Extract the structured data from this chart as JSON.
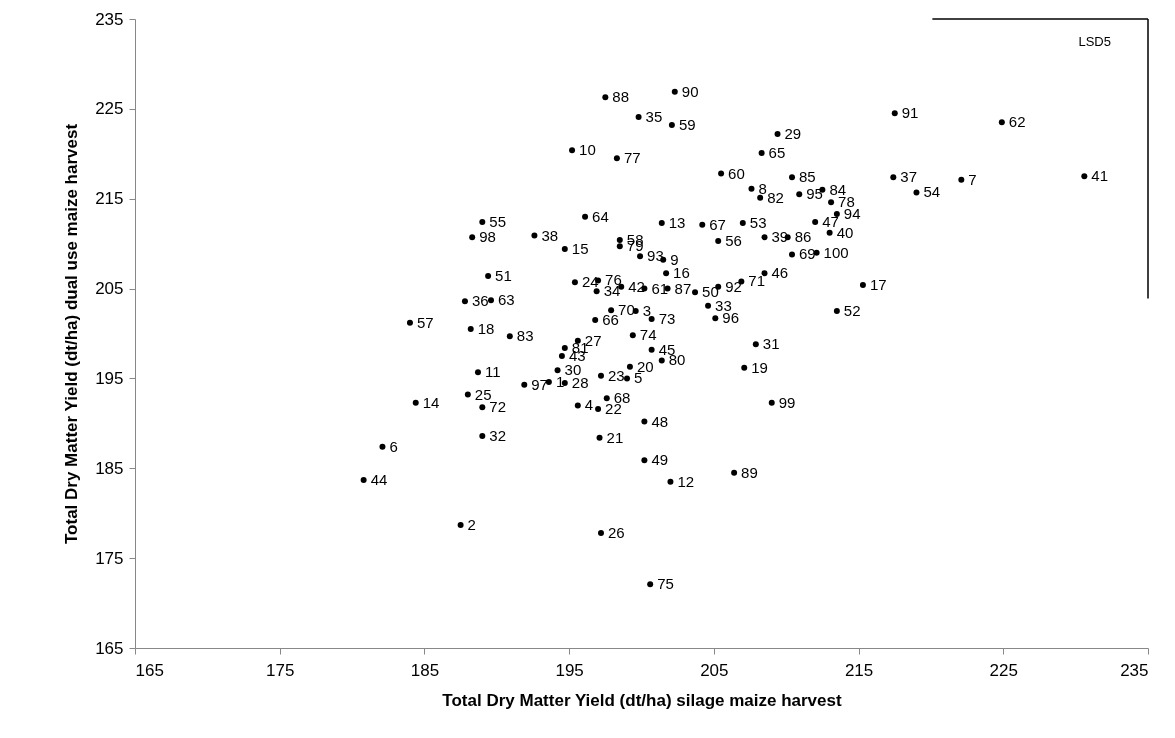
{
  "chart_data": {
    "type": "scatter",
    "xlabel": "Total Dry Matter Yield (dt/ha) silage maize  harvest",
    "ylabel": "Total Dry Matter Yield (dt/ha) dual use maize  harvest",
    "xlim": [
      165,
      235
    ],
    "ylim": [
      165,
      235
    ],
    "xticks": [
      165,
      175,
      185,
      195,
      205,
      215,
      225,
      235
    ],
    "yticks": [
      165,
      175,
      185,
      195,
      205,
      215,
      225,
      235
    ],
    "grid": false,
    "series": [
      {
        "marker": "circle",
        "color": "#000000",
        "x": [
          197.5,
          202.3,
          199.8,
          202.1,
          195.2,
          198.3,
          217.5,
          224.9,
          209.4,
          208.3,
          205.5,
          210.4,
          207.6,
          208.2,
          210.9,
          212.5,
          213.1,
          213.5,
          217.4,
          219.0,
          222.1,
          230.6,
          196.1,
          201.4,
          189.0,
          188.3,
          192.6,
          194.7,
          198.5,
          198.5,
          199.9,
          201.5,
          201.7,
          204.2,
          205.3,
          207.0,
          208.5,
          210.1,
          212.0,
          213.0,
          212.1,
          210.4,
          215.3,
          213.5,
          203.7,
          205.3,
          206.9,
          208.5,
          204.6,
          205.1,
          207.9,
          207.1,
          209.0,
          206.4,
          202.0,
          200.2,
          200.2,
          197.1,
          197.2,
          200.6,
          187.5,
          180.8,
          182.1,
          189.0,
          184.4,
          188.0,
          189.0,
          188.7,
          191.9,
          194.2,
          193.6,
          194.7,
          194.5,
          194.7,
          195.6,
          197.2,
          199.0,
          199.2,
          200.7,
          201.4,
          197.6,
          197.0,
          195.6,
          199.4,
          200.7,
          197.9,
          199.6,
          196.8,
          195.4,
          197.0,
          196.9,
          198.6,
          200.2,
          201.8,
          189.4,
          187.8,
          189.6,
          184.0,
          188.2,
          190.9
        ],
        "values": [
          226.3,
          226.9,
          224.1,
          223.2,
          220.4,
          219.5,
          224.5,
          223.5,
          222.2,
          220.1,
          217.8,
          217.4,
          216.1,
          215.1,
          215.5,
          216.0,
          214.6,
          213.3,
          217.4,
          215.7,
          217.1,
          217.5,
          213.0,
          212.3,
          212.4,
          210.7,
          210.9,
          209.4,
          210.4,
          209.7,
          208.6,
          208.2,
          206.7,
          212.1,
          210.3,
          212.3,
          210.7,
          210.7,
          212.4,
          211.2,
          209.0,
          208.8,
          205.4,
          202.5,
          204.6,
          205.2,
          205.8,
          206.7,
          203.1,
          201.7,
          198.8,
          196.2,
          192.3,
          184.5,
          183.5,
          185.9,
          190.2,
          188.4,
          177.8,
          172.1,
          178.7,
          183.7,
          187.4,
          188.6,
          192.3,
          193.2,
          191.8,
          195.7,
          194.3,
          195.9,
          194.6,
          194.5,
          197.5,
          198.4,
          199.2,
          195.3,
          195.0,
          196.3,
          198.2,
          197.0,
          192.8,
          191.6,
          192.0,
          199.8,
          201.6,
          202.6,
          202.5,
          201.5,
          205.7,
          205.9,
          204.7,
          205.2,
          205.0,
          205.0,
          206.4,
          203.6,
          203.7,
          201.2,
          200.5,
          199.7
        ]
      },
      {
        "type": "line",
        "color": "#000000",
        "x": [
          220.1,
          235
        ],
        "values": [
          235,
          235
        ]
      },
      {
        "type": "line",
        "color": "#000000",
        "x": [
          235,
          235
        ],
        "values": [
          235,
          203.9
        ]
      }
    ],
    "annotations": [
      "LSD5",
      {
        "text": "88",
        "x": 197.5,
        "y": 226.3
      },
      {
        "text": "90",
        "x": 202.3,
        "y": 226.9
      },
      {
        "text": "35",
        "x": 199.8,
        "y": 224.1
      },
      {
        "text": "59",
        "x": 202.1,
        "y": 223.2
      },
      {
        "text": "10",
        "x": 195.2,
        "y": 220.4
      },
      {
        "text": "77",
        "x": 198.3,
        "y": 219.5
      },
      {
        "text": "91",
        "x": 217.5,
        "y": 224.5
      },
      {
        "text": "62",
        "x": 224.9,
        "y": 223.5
      },
      {
        "text": "29",
        "x": 209.4,
        "y": 222.2
      },
      {
        "text": "65",
        "x": 208.3,
        "y": 220.1
      },
      {
        "text": "60",
        "x": 205.5,
        "y": 217.8
      },
      {
        "text": "85",
        "x": 210.4,
        "y": 217.4
      },
      {
        "text": "8",
        "x": 207.6,
        "y": 216.1
      },
      {
        "text": "82",
        "x": 208.2,
        "y": 215.1
      },
      {
        "text": "95",
        "x": 210.9,
        "y": 215.5
      },
      {
        "text": "84",
        "x": 212.5,
        "y": 216.0
      },
      {
        "text": "78",
        "x": 213.1,
        "y": 214.6
      },
      {
        "text": "94",
        "x": 213.5,
        "y": 213.3
      },
      {
        "text": "37",
        "x": 217.4,
        "y": 217.4
      },
      {
        "text": "54",
        "x": 219.0,
        "y": 215.7
      },
      {
        "text": "7",
        "x": 222.1,
        "y": 217.1
      },
      {
        "text": "41",
        "x": 230.6,
        "y": 217.5
      },
      {
        "text": "64",
        "x": 196.1,
        "y": 213.0
      },
      {
        "text": "13",
        "x": 201.4,
        "y": 212.3
      },
      {
        "text": "55",
        "x": 189.0,
        "y": 212.4
      },
      {
        "text": "98",
        "x": 188.3,
        "y": 210.7
      },
      {
        "text": "38",
        "x": 192.6,
        "y": 210.9
      },
      {
        "text": "15",
        "x": 194.7,
        "y": 209.4
      },
      {
        "text": "58",
        "x": 198.5,
        "y": 210.4
      },
      {
        "text": "79",
        "x": 198.5,
        "y": 209.7
      },
      {
        "text": "93",
        "x": 199.9,
        "y": 208.6
      },
      {
        "text": "9",
        "x": 201.5,
        "y": 208.2
      },
      {
        "text": "16",
        "x": 201.7,
        "y": 206.7
      },
      {
        "text": "67",
        "x": 204.2,
        "y": 212.1
      },
      {
        "text": "56",
        "x": 205.3,
        "y": 210.3
      },
      {
        "text": "53",
        "x": 207.0,
        "y": 212.3
      },
      {
        "text": "39",
        "x": 208.5,
        "y": 210.7
      },
      {
        "text": "86",
        "x": 210.1,
        "y": 210.7
      },
      {
        "text": "47",
        "x": 212.0,
        "y": 212.4
      },
      {
        "text": "40",
        "x": 213.0,
        "y": 211.2
      },
      {
        "text": "100",
        "x": 212.1,
        "y": 209.0
      },
      {
        "text": "69",
        "x": 210.4,
        "y": 208.8
      },
      {
        "text": "17",
        "x": 215.3,
        "y": 205.4
      },
      {
        "text": "52",
        "x": 213.5,
        "y": 202.5
      },
      {
        "text": "50",
        "x": 203.7,
        "y": 204.6
      },
      {
        "text": "92",
        "x": 205.3,
        "y": 205.2
      },
      {
        "text": "71",
        "x": 206.9,
        "y": 205.8
      },
      {
        "text": "46",
        "x": 208.5,
        "y": 206.7
      },
      {
        "text": "33",
        "x": 204.6,
        "y": 203.1
      },
      {
        "text": "96",
        "x": 205.1,
        "y": 201.7
      },
      {
        "text": "31",
        "x": 207.9,
        "y": 198.8
      },
      {
        "text": "19",
        "x": 207.1,
        "y": 196.2
      },
      {
        "text": "99",
        "x": 209.0,
        "y": 192.3
      },
      {
        "text": "89",
        "x": 206.4,
        "y": 184.5
      },
      {
        "text": "12",
        "x": 202.0,
        "y": 183.5
      },
      {
        "text": "49",
        "x": 200.2,
        "y": 185.9
      },
      {
        "text": "48",
        "x": 200.2,
        "y": 190.2
      },
      {
        "text": "21",
        "x": 197.1,
        "y": 188.4
      },
      {
        "text": "26",
        "x": 197.2,
        "y": 177.8
      },
      {
        "text": "75",
        "x": 200.6,
        "y": 172.1
      },
      {
        "text": "2",
        "x": 187.5,
        "y": 178.7
      },
      {
        "text": "44",
        "x": 180.8,
        "y": 183.7
      },
      {
        "text": "6",
        "x": 182.1,
        "y": 187.4
      },
      {
        "text": "32",
        "x": 189.0,
        "y": 188.6
      },
      {
        "text": "14",
        "x": 184.4,
        "y": 192.3
      },
      {
        "text": "25",
        "x": 188.0,
        "y": 193.2
      },
      {
        "text": "72",
        "x": 189.0,
        "y": 191.8
      },
      {
        "text": "11",
        "x": 188.7,
        "y": 195.7
      },
      {
        "text": "97",
        "x": 191.9,
        "y": 194.3
      },
      {
        "text": "30",
        "x": 194.2,
        "y": 195.9
      },
      {
        "text": "1",
        "x": 193.6,
        "y": 194.6
      },
      {
        "text": "28",
        "x": 194.7,
        "y": 194.5
      },
      {
        "text": "43",
        "x": 194.5,
        "y": 197.5
      },
      {
        "text": "81",
        "x": 194.7,
        "y": 198.4
      },
      {
        "text": "27",
        "x": 195.6,
        "y": 199.2
      },
      {
        "text": "23",
        "x": 197.2,
        "y": 195.3
      },
      {
        "text": "5",
        "x": 199.0,
        "y": 195.0
      },
      {
        "text": "20",
        "x": 199.2,
        "y": 196.3
      },
      {
        "text": "45",
        "x": 200.7,
        "y": 198.2
      },
      {
        "text": "80",
        "x": 201.4,
        "y": 197.0
      },
      {
        "text": "68",
        "x": 197.6,
        "y": 192.8
      },
      {
        "text": "22",
        "x": 197.0,
        "y": 191.6
      },
      {
        "text": "4",
        "x": 195.6,
        "y": 192.0
      },
      {
        "text": "74",
        "x": 199.4,
        "y": 199.8
      },
      {
        "text": "73",
        "x": 200.7,
        "y": 201.6
      },
      {
        "text": "70",
        "x": 197.9,
        "y": 202.6
      },
      {
        "text": "3",
        "x": 199.6,
        "y": 202.5
      },
      {
        "text": "66",
        "x": 196.8,
        "y": 201.5
      },
      {
        "text": "24",
        "x": 195.4,
        "y": 205.7
      },
      {
        "text": "76",
        "x": 197.0,
        "y": 205.9
      },
      {
        "text": "34",
        "x": 196.9,
        "y": 204.7
      },
      {
        "text": "42",
        "x": 198.6,
        "y": 205.2
      },
      {
        "text": "61",
        "x": 200.2,
        "y": 205.0
      },
      {
        "text": "87",
        "x": 201.8,
        "y": 205.0
      },
      {
        "text": "51",
        "x": 189.4,
        "y": 206.4
      },
      {
        "text": "36",
        "x": 187.8,
        "y": 203.6
      },
      {
        "text": "63",
        "x": 189.6,
        "y": 203.7
      },
      {
        "text": "57",
        "x": 184.0,
        "y": 201.2
      },
      {
        "text": "18",
        "x": 188.2,
        "y": 200.5
      },
      {
        "text": "83",
        "x": 190.9,
        "y": 199.7
      }
    ]
  }
}
